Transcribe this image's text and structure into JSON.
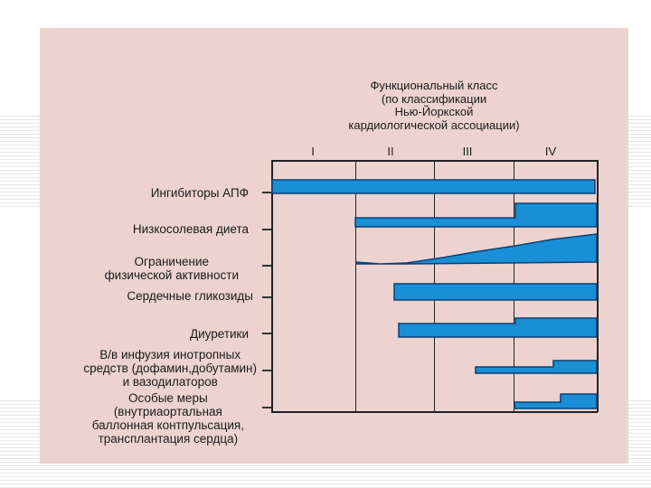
{
  "header": {
    "lines": [
      "Функциональный класс",
      "(по классификации",
      "Нью-Йоркской",
      "кардиологической ассоциации)"
    ],
    "classes": [
      "I",
      "II",
      "III",
      "IV"
    ]
  },
  "rows": [
    {
      "label": [
        "Ингибиторы АПФ"
      ]
    },
    {
      "label": [
        "Низкосолевая диета"
      ]
    },
    {
      "label": [
        "Ограничение",
        "физической активности"
      ]
    },
    {
      "label": [
        "Сердечные гликозиды"
      ]
    },
    {
      "label": [
        "Диуретики"
      ]
    },
    {
      "label": [
        "В/в инфузия инотропных",
        "средств (дофамин,добутамин)",
        "и вазодилаторов"
      ]
    },
    {
      "label": [
        "Особые меры",
        "(внутриаортальная",
        "баллонная контпульсация,",
        "трансплантация сердца)"
      ]
    }
  ],
  "colors": {
    "panel": "#ecd3cf",
    "bar_fill": "#1a8fd6",
    "bar_stroke": "#0b3f73"
  }
}
